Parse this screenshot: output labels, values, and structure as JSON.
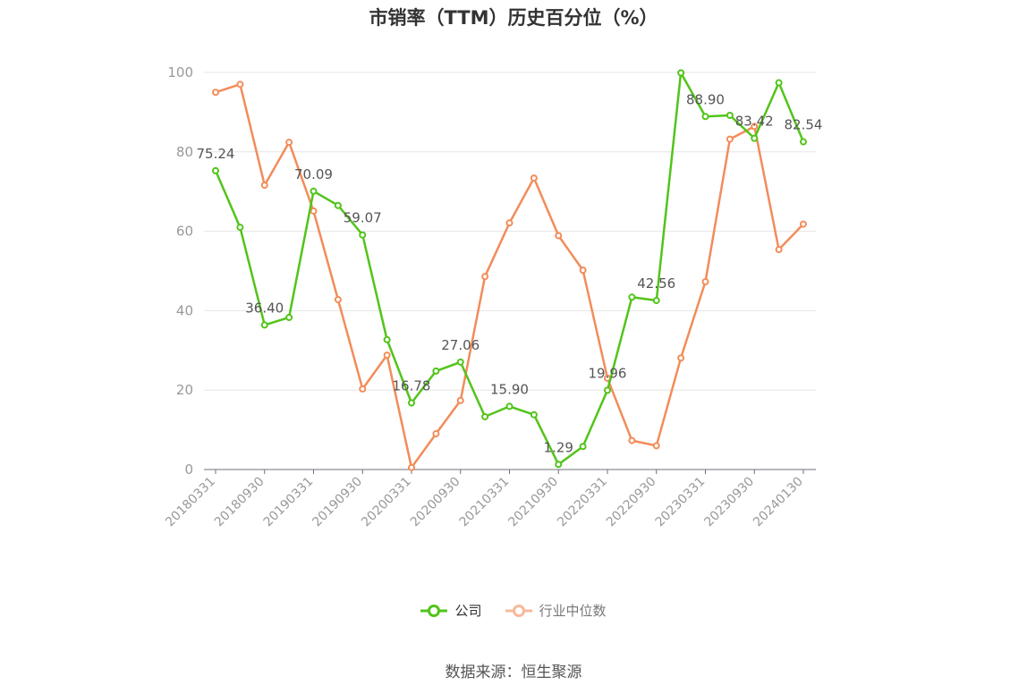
{
  "title": "市销率（TTM）历史百分位（%）",
  "source": "数据来源：恒生聚源",
  "colors": {
    "company": "#52c41a",
    "industry": "#f28c5a",
    "industry_legend": "#f7b99a",
    "axis": "#999999",
    "grid": "#e6e6e6",
    "label": "#555555"
  },
  "chart_data": {
    "type": "line",
    "title": "市销率（TTM）历史百分位（%）",
    "ylim": [
      0,
      100
    ],
    "yticks": [
      0,
      20,
      40,
      60,
      80,
      100
    ],
    "x": [
      "20180331",
      "20180630",
      "20180930",
      "20181231",
      "20190331",
      "20190630",
      "20190930",
      "20191231",
      "20200331",
      "20200630",
      "20200930",
      "20201231",
      "20210331",
      "20210630",
      "20210930",
      "20211231",
      "20220331",
      "20220630",
      "20220930",
      "20221231",
      "20230331",
      "20230630",
      "20230930",
      "20231231",
      "20240130"
    ],
    "xticks": [
      "20180331",
      "20180930",
      "20190331",
      "20190930",
      "20200331",
      "20200930",
      "20210331",
      "20210930",
      "20220331",
      "20220930",
      "20230331",
      "20230930",
      "20240130"
    ],
    "legend_position": "bottom",
    "grid": true,
    "series": [
      {
        "name": "公司",
        "values": [
          75.24,
          61.0,
          36.4,
          38.3,
          70.09,
          66.5,
          59.07,
          32.7,
          16.78,
          24.8,
          27.06,
          13.3,
          15.9,
          13.8,
          1.29,
          5.8,
          19.96,
          43.4,
          42.56,
          99.9,
          88.9,
          89.2,
          83.42,
          97.4,
          82.54
        ],
        "labels": {
          "0": "75.24",
          "2": "36.40",
          "4": "70.09",
          "6": "59.07",
          "8": "16.78",
          "10": "27.06",
          "12": "15.90",
          "14": "1.29",
          "16": "19.96",
          "18": "42.56",
          "20": "88.90",
          "22": "83.42",
          "24": "82.54"
        }
      },
      {
        "name": "行业中位数",
        "values": [
          95.0,
          97.0,
          71.6,
          82.4,
          65.1,
          42.8,
          20.3,
          28.8,
          0.5,
          9.0,
          17.4,
          48.6,
          62.1,
          73.4,
          58.9,
          50.2,
          23.0,
          7.3,
          6.0,
          28.1,
          47.3,
          83.2,
          86.4,
          55.4,
          61.8
        ]
      }
    ]
  }
}
